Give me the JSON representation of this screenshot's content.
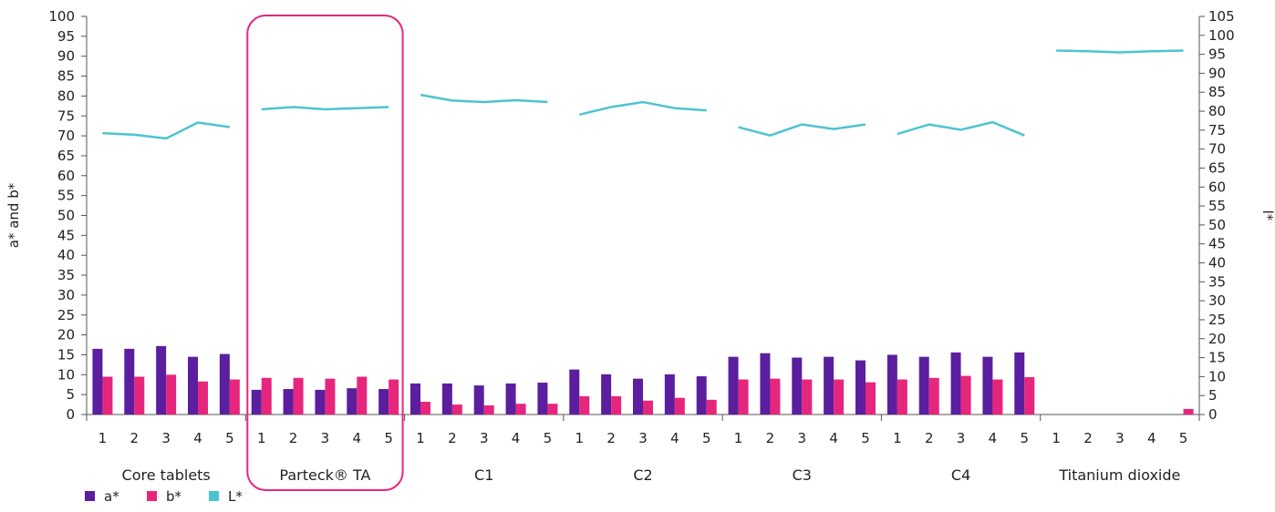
{
  "chart_data": {
    "type": "bar",
    "groups": [
      "Core tablets",
      "Parteck® TA",
      "C1",
      "C2",
      "C3",
      "C4",
      "Titanium dioxide"
    ],
    "sub_categories": [
      "1",
      "2",
      "3",
      "4",
      "5"
    ],
    "ylabel": "a* and b*",
    "y2label": "l*",
    "ylim": [
      0,
      100
    ],
    "y2lim": [
      0,
      105
    ],
    "y_ticks": [
      0,
      5,
      10,
      15,
      20,
      25,
      30,
      35,
      40,
      45,
      50,
      55,
      60,
      65,
      70,
      75,
      80,
      85,
      90,
      95,
      100
    ],
    "y2_ticks": [
      0,
      5,
      10,
      15,
      20,
      25,
      30,
      35,
      40,
      45,
      50,
      55,
      60,
      65,
      70,
      75,
      80,
      85,
      90,
      95,
      100,
      105
    ],
    "highlighted_group": "Parteck® TA",
    "legend_position": "bottom-left",
    "series": [
      {
        "name": "a*",
        "type": "bar",
        "axis": "left",
        "color": "#5b1e9e",
        "values": [
          [
            16.5,
            16.5,
            17.2,
            14.5,
            15.2
          ],
          [
            6.2,
            6.4,
            6.2,
            6.6,
            6.4
          ],
          [
            7.8,
            7.8,
            7.3,
            7.8,
            8.0
          ],
          [
            11.3,
            10.1,
            9.0,
            10.1,
            9.6
          ],
          [
            14.5,
            15.4,
            14.3,
            14.5,
            13.6
          ],
          [
            15.0,
            14.5,
            15.6,
            14.5,
            15.6
          ],
          [
            0,
            0,
            0,
            0,
            0
          ]
        ]
      },
      {
        "name": "b*",
        "type": "bar",
        "axis": "left",
        "color": "#e6267d",
        "values": [
          [
            9.5,
            9.5,
            10.0,
            8.3,
            8.8
          ],
          [
            9.2,
            9.2,
            9.0,
            9.5,
            8.8
          ],
          [
            3.2,
            2.5,
            2.3,
            2.7,
            2.7
          ],
          [
            4.6,
            4.6,
            3.5,
            4.2,
            3.7
          ],
          [
            8.8,
            9.0,
            8.8,
            8.8,
            8.1
          ],
          [
            8.8,
            9.2,
            9.7,
            8.8,
            9.4
          ],
          [
            0,
            0,
            0,
            0,
            1.4
          ]
        ]
      },
      {
        "name": "L*",
        "type": "line",
        "axis": "right",
        "color": "#4ec3d0",
        "values": [
          [
            74.2,
            73.8,
            72.8,
            77.0,
            75.8
          ],
          [
            80.5,
            81.1,
            80.5,
            80.8,
            81.1
          ],
          [
            84.3,
            82.8,
            82.4,
            82.9,
            82.4
          ],
          [
            79.1,
            81.1,
            82.4,
            80.8,
            80.2
          ],
          [
            75.8,
            73.6,
            76.5,
            75.3,
            76.5
          ],
          [
            74.0,
            76.5,
            75.1,
            77.1,
            73.6
          ],
          [
            96.0,
            95.8,
            95.5,
            95.8,
            96.0
          ]
        ]
      }
    ]
  }
}
